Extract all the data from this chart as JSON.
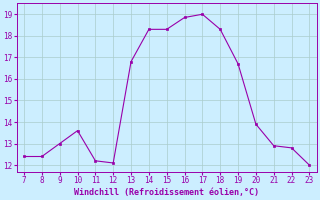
{
  "x": [
    7,
    8,
    9,
    10,
    11,
    12,
    13,
    14,
    15,
    16,
    17,
    18,
    19,
    20,
    21,
    22,
    23
  ],
  "y": [
    12.4,
    12.4,
    13.0,
    13.6,
    12.2,
    12.1,
    16.8,
    18.3,
    18.3,
    18.85,
    19.0,
    18.3,
    16.7,
    13.9,
    12.9,
    12.8,
    12.0
  ],
  "line_color": "#9900aa",
  "marker_color": "#9900aa",
  "bg_color": "#cceeff",
  "grid_color": "#aacccc",
  "xlabel": "Windchill (Refroidissement éolien,°C)",
  "xlabel_color": "#9900aa",
  "tick_color": "#9900aa",
  "xlim_min": 6.6,
  "xlim_max": 23.4,
  "ylim_min": 11.7,
  "ylim_max": 19.5,
  "yticks": [
    12,
    13,
    14,
    15,
    16,
    17,
    18,
    19
  ],
  "xticks": [
    7,
    8,
    9,
    10,
    11,
    12,
    13,
    14,
    15,
    16,
    17,
    18,
    19,
    20,
    21,
    22,
    23
  ],
  "xlabel_fontsize": 6.0,
  "tick_fontsize": 5.5
}
